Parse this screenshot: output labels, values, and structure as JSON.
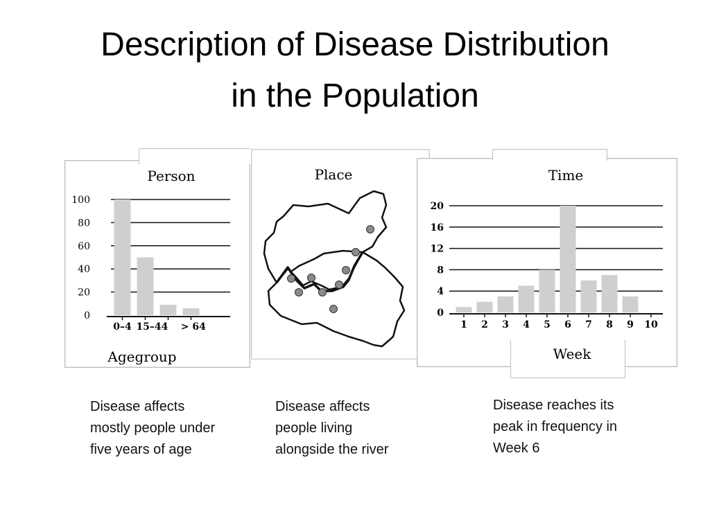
{
  "slide": {
    "title_line1": "Description of Disease Distribution",
    "title_line2": "in the Population"
  },
  "panels": {
    "person": {
      "heading": "Person"
    },
    "place": {
      "heading": "Place"
    },
    "time": {
      "heading": "Time"
    }
  },
  "captions": {
    "person": [
      "Disease affects",
      "mostly people under",
      "five years of age"
    ],
    "place": [
      "Disease affects",
      "people living",
      "alongside  the river"
    ],
    "time": [
      "Disease reaches its",
      "peak in frequency in",
      "Week 6"
    ]
  },
  "chart_data": [
    {
      "type": "bar",
      "title": "Person",
      "xlabel": "Agegroup",
      "ylabel": "",
      "categories": [
        "0–4",
        "15–44",
        "> 64"
      ],
      "category_positions": [
        0,
        1.3,
        3.1
      ],
      "bars": [
        {
          "pos": 0,
          "value": 100
        },
        {
          "pos": 1,
          "value": 50
        },
        {
          "pos": 2,
          "value": 9
        },
        {
          "pos": 3,
          "value": 6
        }
      ],
      "yticks": [
        0,
        20,
        40,
        60,
        80,
        100
      ],
      "ylim": [
        0,
        100
      ],
      "grid": true,
      "color": "#cfcfcf"
    },
    {
      "type": "map",
      "title": "Place",
      "description_points": 9,
      "grid": false
    },
    {
      "type": "bar",
      "title": "Time",
      "xlabel": "Week",
      "ylabel": "",
      "categories": [
        "1",
        "2",
        "3",
        "4",
        "5",
        "6",
        "7",
        "8",
        "9",
        "10"
      ],
      "values": [
        1,
        2,
        3,
        5,
        8,
        20,
        6,
        7,
        3,
        0
      ],
      "yticks": [
        0,
        4,
        8,
        12,
        16,
        20
      ],
      "ylim": [
        0,
        20
      ],
      "grid": true,
      "color": "#cfcfcf"
    }
  ]
}
